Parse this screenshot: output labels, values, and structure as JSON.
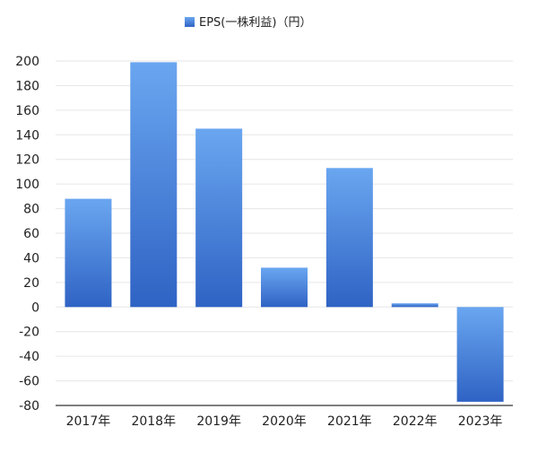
{
  "chart_data": {
    "type": "bar",
    "legend_position": "top-center",
    "grid": true,
    "categories": [
      "2017年",
      "2018年",
      "2019年",
      "2020年",
      "2021年",
      "2022年",
      "2023年"
    ],
    "series": [
      {
        "name": "EPS(一株利益)（円）",
        "values": [
          88,
          199,
          145,
          32,
          113,
          3,
          -77
        ]
      }
    ],
    "yticks": [
      "200",
      "180",
      "160",
      "140",
      "120",
      "100",
      "80",
      "60",
      "40",
      "20",
      "0",
      "-20",
      "-40",
      "-60",
      "-80"
    ],
    "ylim": [
      -80,
      200
    ],
    "colors": {
      "bar_top": "#6aa6f0",
      "bar_bottom": "#2f63c4",
      "grid": "#e6e6e6",
      "axis": "#555555"
    }
  }
}
